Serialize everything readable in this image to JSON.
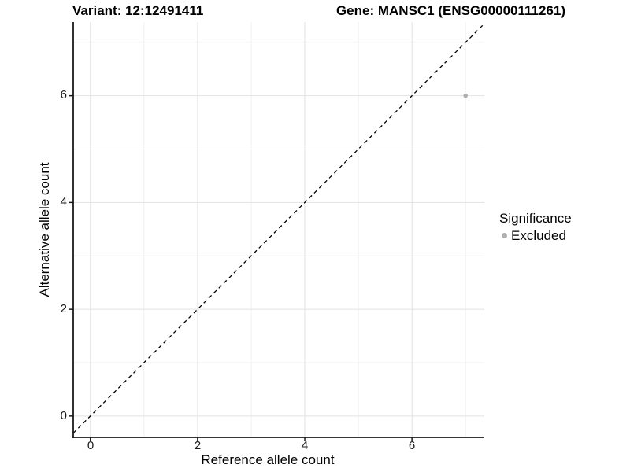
{
  "figure": {
    "background": "#ffffff"
  },
  "chart_data": {
    "type": "scatter",
    "title_left": "Variant: 12:12491411",
    "title_right": "Gene: MANSC1 (ENSG00000111261)",
    "xlabel": "Reference allele count",
    "ylabel": "Alternative allele count",
    "xlim": [
      -0.32,
      7.35
    ],
    "ylim": [
      -0.4,
      7.38
    ],
    "x_ticks": [
      0,
      2,
      4,
      6
    ],
    "y_ticks": [
      0,
      2,
      4,
      6
    ],
    "x_tick_labels": [
      "0",
      "2",
      "4",
      "6"
    ],
    "y_tick_labels": [
      "0",
      "2",
      "4",
      "6"
    ],
    "x_minor_breaks": [
      1,
      3,
      5,
      7
    ],
    "y_minor_breaks": [
      1,
      3,
      5,
      7
    ],
    "grid": "major+minor",
    "reference_line": {
      "type": "identity",
      "equation": "y = x",
      "style": "dashed",
      "color": "#000000"
    },
    "series": [
      {
        "name": "Excluded",
        "color": "#b0b0b0",
        "marker": "point",
        "points": [
          {
            "x": 7,
            "y": 6
          }
        ]
      }
    ],
    "legend": {
      "title": "Significance",
      "position": "right",
      "entries": [
        {
          "label": "Excluded",
          "color": "#b0b0b0",
          "marker": "point"
        }
      ]
    },
    "colors": {
      "axis": "#1a1a1a",
      "grid_major": "#e2e2e2",
      "grid_minor": "#f0f0f0",
      "point": "#b0b0b0",
      "text": "#000000"
    }
  }
}
